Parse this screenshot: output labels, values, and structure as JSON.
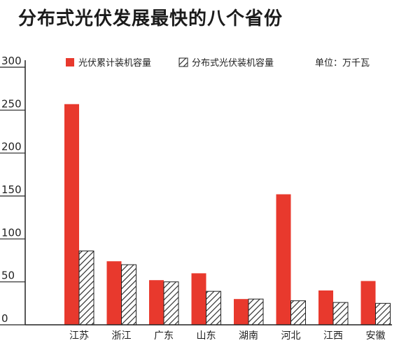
{
  "title": "分布式光伏发展最快的八个省份",
  "unit_label": "单位：万千瓦",
  "chart_data": {
    "type": "bar",
    "categories": [
      "江苏",
      "浙江",
      "广东",
      "山东",
      "湖南",
      "河北",
      "江西",
      "安徽"
    ],
    "series": [
      {
        "name": "光伏累计装机容量",
        "values": [
          257,
          74,
          52,
          60,
          30,
          152,
          40,
          51
        ],
        "color": "#e8392d",
        "pattern": "solid"
      },
      {
        "name": "分布式光伏装机容量",
        "values": [
          86,
          70,
          50,
          39,
          30,
          28,
          26,
          25
        ],
        "color": "#ffffff",
        "pattern": "hatch"
      }
    ],
    "yticks": [
      0,
      50,
      100,
      150,
      200,
      250,
      300
    ],
    "ylim": [
      0,
      300
    ],
    "grid": false,
    "legend_position": "top"
  }
}
